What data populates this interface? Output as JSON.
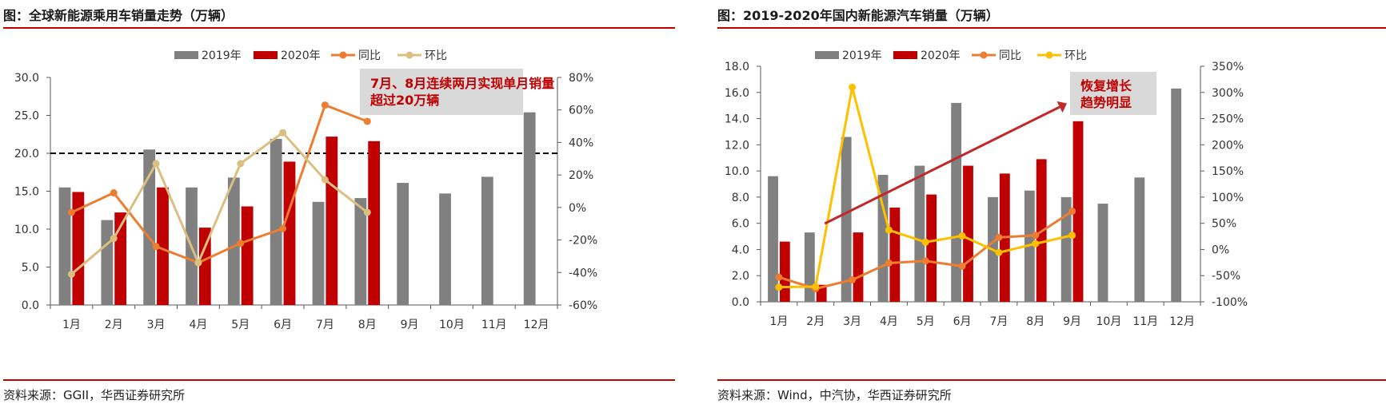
{
  "left_panel": {
    "title": "图：全球新能源乘用车销量走势（万辆）",
    "source": "资料来源：GGII，华西证券研究所"
  },
  "right_panel": {
    "title": "图：2019-2020年国内新能源汽车销量（万辆）",
    "source": "资料来源：Wind，中汽协，华西证券研究所"
  },
  "colors": {
    "bar2019": "#808080",
    "bar2020": "#c00000",
    "yoy": "#ed7d31",
    "mom_left": "#dcbf80",
    "mom_right": "#ffc000",
    "rule": "#c00000",
    "callout_bg": "#d9d9d9",
    "callout_text": "#c00000",
    "arrow": "#c0282a"
  },
  "chart_data": [
    {
      "type": "bar",
      "categories": [
        "1月",
        "2月",
        "3月",
        "4月",
        "5月",
        "6月",
        "7月",
        "8月",
        "9月",
        "10月",
        "11月",
        "12月"
      ],
      "series": [
        {
          "name": "2019年",
          "kind": "bar",
          "axis": "left",
          "values": [
            15.5,
            11.2,
            20.5,
            15.5,
            16.8,
            21.9,
            13.6,
            14.1,
            16.1,
            14.7,
            16.9,
            25.4
          ]
        },
        {
          "name": "2020年",
          "kind": "bar",
          "axis": "left",
          "values": [
            14.9,
            12.2,
            15.5,
            10.2,
            13.0,
            18.9,
            22.2,
            21.6,
            null,
            null,
            null,
            null
          ]
        },
        {
          "name": "同比",
          "kind": "line",
          "axis": "right",
          "values": [
            -3,
            9,
            -24,
            -34,
            -22,
            -13,
            63,
            53,
            null,
            null,
            null,
            null
          ]
        },
        {
          "name": "环比",
          "kind": "line",
          "axis": "right",
          "values": [
            -41,
            -19,
            27,
            -34,
            27,
            46,
            17,
            -3,
            null,
            null,
            null,
            null
          ]
        }
      ],
      "yticks_left": [
        "0.0",
        "5.0",
        "10.0",
        "15.0",
        "20.0",
        "25.0",
        "30.0"
      ],
      "yticks_right": [
        "-60%",
        "-40%",
        "-20%",
        "0%",
        "20%",
        "40%",
        "60%",
        "80%"
      ],
      "ylim_left": [
        0,
        30
      ],
      "ylim_right": [
        -60,
        80
      ],
      "reference_line": {
        "value": 20,
        "style": "dashed"
      },
      "annotation": "7月、8月连续两月实现单月销量超过20万辆",
      "legend_position": "top"
    },
    {
      "type": "bar",
      "categories": [
        "1月",
        "2月",
        "3月",
        "4月",
        "5月",
        "6月",
        "7月",
        "8月",
        "9月",
        "10月",
        "11月",
        "12月"
      ],
      "series": [
        {
          "name": "2019年",
          "kind": "bar",
          "axis": "left",
          "values": [
            9.6,
            5.3,
            12.6,
            9.7,
            10.4,
            15.2,
            8.0,
            8.5,
            8.0,
            7.5,
            9.5,
            16.3
          ]
        },
        {
          "name": "2020年",
          "kind": "bar",
          "axis": "left",
          "values": [
            4.6,
            1.3,
            5.3,
            7.2,
            8.2,
            10.4,
            9.8,
            10.9,
            13.8,
            null,
            null,
            null
          ]
        },
        {
          "name": "同比",
          "kind": "line",
          "axis": "right",
          "values": [
            -53,
            -75,
            -58,
            -26,
            -22,
            -32,
            23,
            27,
            73,
            null,
            null,
            null
          ]
        },
        {
          "name": "环比",
          "kind": "line",
          "axis": "right",
          "values": [
            -72,
            -71,
            310,
            37,
            14,
            26,
            -6,
            11,
            27,
            null,
            null,
            null
          ]
        }
      ],
      "yticks_left": [
        "0.0",
        "2.0",
        "4.0",
        "6.0",
        "8.0",
        "10.0",
        "12.0",
        "14.0",
        "16.0",
        "18.0"
      ],
      "yticks_right": [
        "-100%",
        "-50%",
        "0%",
        "50%",
        "100%",
        "150%",
        "200%",
        "250%",
        "300%",
        "350%"
      ],
      "ylim_left": [
        0,
        18
      ],
      "ylim_right": [
        -100,
        350
      ],
      "trend_arrow": true,
      "annotation": "恢复增长趋势明显",
      "legend_position": "top"
    }
  ]
}
